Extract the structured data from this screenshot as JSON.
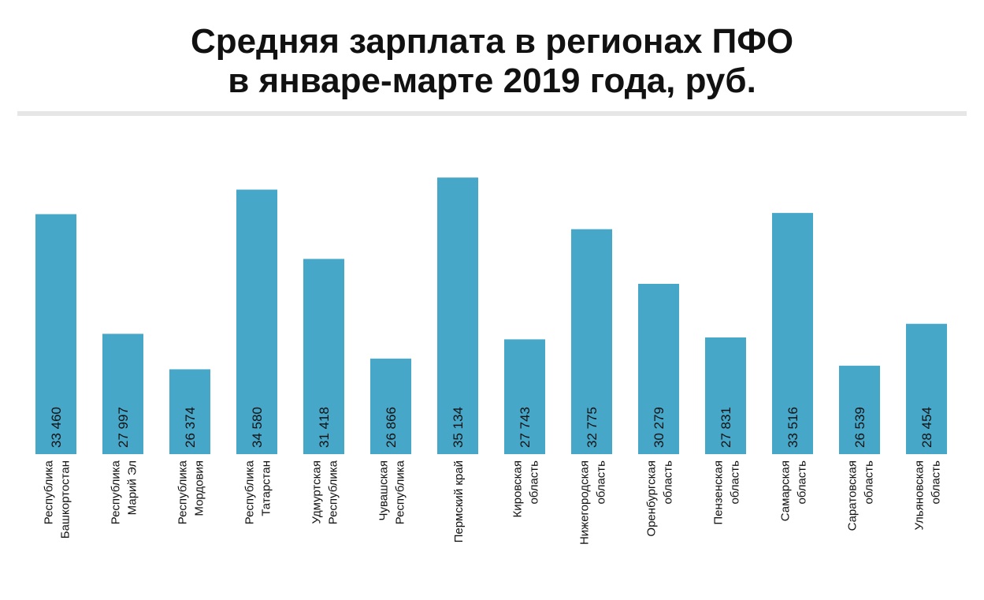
{
  "title_line1": "Средняя зарплата в регионах ПФО",
  "title_line2": "в январе-марте 2019 года, руб.",
  "chart_data": {
    "type": "bar",
    "title": "Средняя зарплата в регионах ПФО в январе-марте 2019 года, руб.",
    "xlabel": "",
    "ylabel": "",
    "ylim": [
      22500,
      35500
    ],
    "bar_color": "#47a7c9",
    "categories": [
      [
        "Республика",
        "Башкортостан"
      ],
      [
        "Республика",
        "Марий Эл"
      ],
      [
        "Республика",
        "Мордовия"
      ],
      [
        "Республика",
        "Татарстан"
      ],
      [
        "Удмуртская",
        "Республика"
      ],
      [
        "Чувашская",
        "Республика"
      ],
      [
        "Пермский край"
      ],
      [
        "Кировская",
        "область"
      ],
      [
        "Нижегородская",
        "область"
      ],
      [
        "Оренбургская",
        "область"
      ],
      [
        "Пензенская",
        "область"
      ],
      [
        "Самарская",
        "область"
      ],
      [
        "Саратовская",
        "область"
      ],
      [
        "Ульяновская",
        "область"
      ]
    ],
    "values": [
      33460,
      27997,
      26374,
      34580,
      31418,
      26866,
      35134,
      27743,
      32775,
      30279,
      27831,
      33516,
      26539,
      28454
    ],
    "value_labels": [
      "33 460",
      "27 997",
      "26 374",
      "34 580",
      "31 418",
      "26 866",
      "35 134",
      "27 743",
      "32 775",
      "30 279",
      "27 831",
      "33 516",
      "26 539",
      "28 454"
    ]
  }
}
